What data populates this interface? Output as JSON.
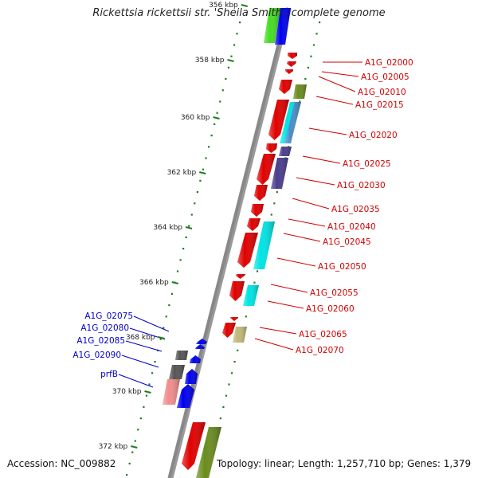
{
  "title": "Rickettsia rickettsii str. 'Sheila Smith', complete genome",
  "accession": "Accession: NC_009882",
  "topology": "Topology: linear; Length: 1,257,710 bp; Genes: 1,379",
  "colors": {
    "backbone": "#888888",
    "tick": "#1e7d1e",
    "forward_label": "#d00000",
    "reverse_label": "#0000c8",
    "red": "#e00000",
    "cyan": "#00e4e4",
    "steel_blue": "#4a8cc8",
    "olive": "#6a8c1e",
    "purple": "#4a3c8c",
    "gray": "#555555",
    "pink": "#f08c8c",
    "blue": "#0000ee",
    "green": "#44dd22",
    "khaki": "#c0b878"
  },
  "kbp_labels": [
    "356 kbp",
    "358 kbp",
    "360 kbp",
    "362 kbp",
    "364 kbp",
    "366 kbp",
    "368 kbp",
    "370 kbp",
    "372 kbp"
  ],
  "forward_genes": [
    "A1G_02000",
    "A1G_02005",
    "A1G_02010",
    "A1G_02015",
    "A1G_02020",
    "A1G_02025",
    "A1G_02030",
    "A1G_02035",
    "A1G_02040",
    "A1G_02045",
    "A1G_02050",
    "A1G_02055",
    "A1G_02060",
    "A1G_02065",
    "A1G_02070"
  ],
  "reverse_genes": [
    "A1G_02075",
    "A1G_02080",
    "A1G_02085",
    "A1G_02090",
    "prfB"
  ]
}
